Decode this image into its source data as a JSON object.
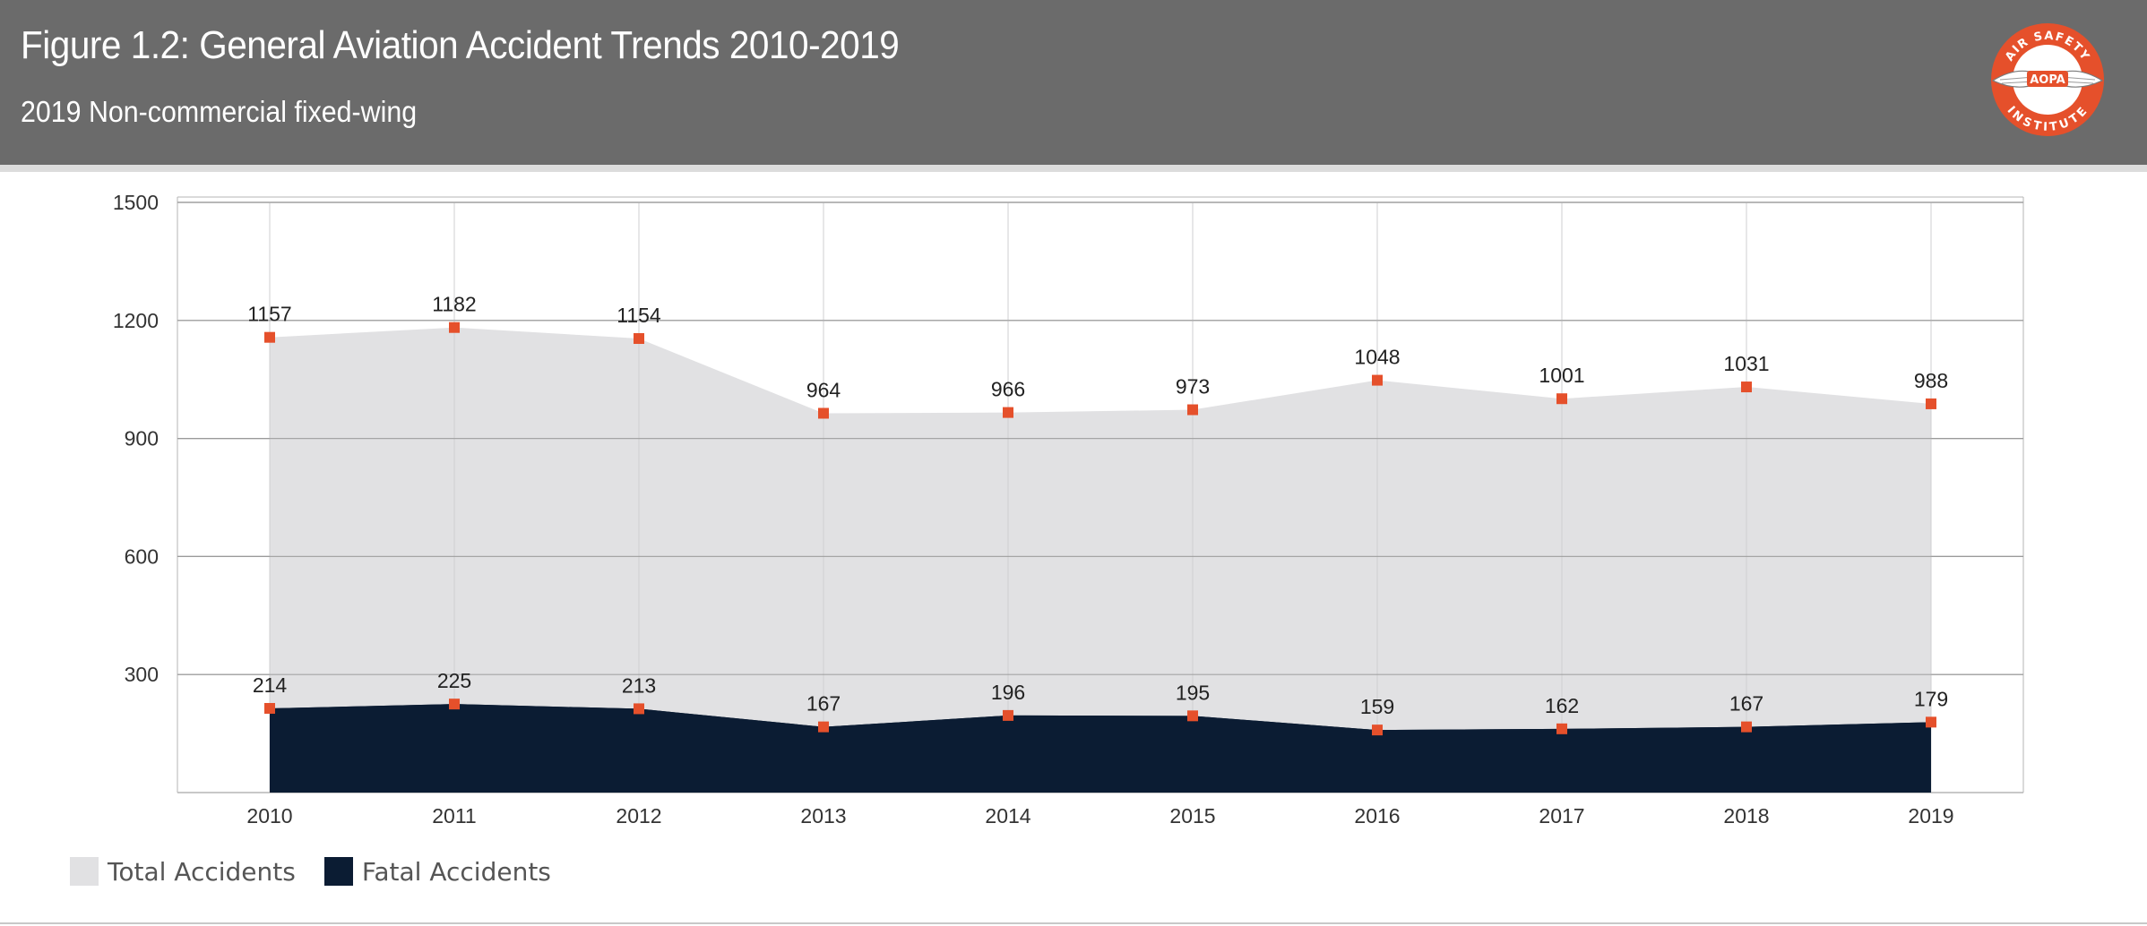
{
  "header": {
    "title": "Figure 1.2: General Aviation Accident Trends 2010-2019",
    "subtitle": "2019 Non-commercial fixed-wing"
  },
  "logo": {
    "top_text": "AIR SAFETY",
    "center_text": "AOPA",
    "bottom_text": "INSTITUTE",
    "icon": "wings-badge-icon"
  },
  "colors": {
    "header_bg": "#6b6b6b",
    "total_fill": "#e1e1e3",
    "fatal_fill": "#0b1c33",
    "marker": "#e5502b",
    "logo": "#e5502b"
  },
  "chart_data": {
    "type": "area",
    "categories": [
      "2010",
      "2011",
      "2012",
      "2013",
      "2014",
      "2015",
      "2016",
      "2017",
      "2018",
      "2019"
    ],
    "series": [
      {
        "name": "Total Accidents",
        "values": [
          1157,
          1182,
          1154,
          964,
          966,
          973,
          1048,
          1001,
          1031,
          988
        ],
        "color": "#e1e1e3"
      },
      {
        "name": "Fatal Accidents",
        "values": [
          214,
          225,
          213,
          167,
          196,
          195,
          159,
          162,
          167,
          179
        ],
        "color": "#0b1c33"
      }
    ],
    "yticks": [
      "1500",
      "1200",
      "900",
      "600",
      "300"
    ],
    "ylim": [
      0,
      1500
    ],
    "grid": true,
    "legend_position": "bottom-left",
    "data_labels": true
  }
}
